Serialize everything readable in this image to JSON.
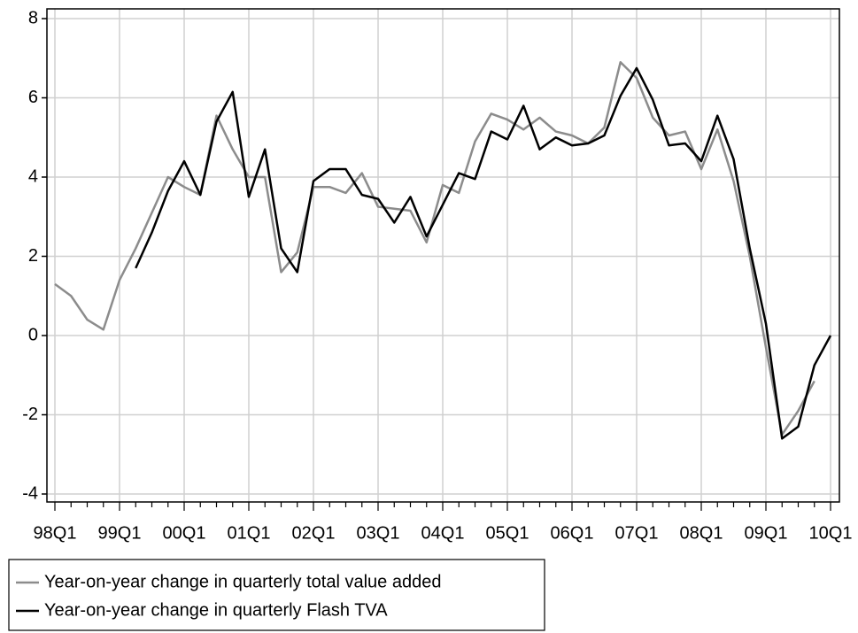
{
  "chart_data": {
    "type": "line",
    "categories": [
      "98Q1",
      null,
      null,
      null,
      "99Q1",
      null,
      null,
      null,
      "00Q1",
      null,
      null,
      null,
      "01Q1",
      null,
      null,
      null,
      "02Q1",
      null,
      null,
      null,
      "03Q1",
      null,
      null,
      null,
      "04Q1",
      null,
      null,
      null,
      "05Q1",
      null,
      null,
      null,
      "06Q1",
      null,
      null,
      null,
      "07Q1",
      null,
      null,
      null,
      "08Q1",
      null,
      null,
      null,
      "09Q1",
      null,
      null,
      null,
      "10Q1"
    ],
    "series": [
      {
        "name": "Year-on-year change in quarterly total value added",
        "color": "#8c8c8c",
        "values": [
          1.3,
          1.0,
          0.4,
          0.15,
          1.4,
          2.2,
          3.1,
          4.0,
          3.75,
          3.55,
          5.55,
          4.7,
          4.0,
          4.0,
          1.6,
          2.1,
          3.75,
          3.75,
          3.6,
          4.1,
          3.25,
          3.2,
          3.15,
          2.35,
          3.8,
          3.6,
          4.9,
          5.6,
          5.45,
          5.2,
          5.5,
          5.15,
          5.05,
          4.85,
          5.25,
          6.9,
          6.5,
          5.5,
          5.05,
          5.15,
          4.2,
          5.2,
          3.9,
          2.0,
          -0.3,
          -2.5,
          -1.9,
          -1.15,
          null
        ]
      },
      {
        "name": "Year-on-year change in quarterly Flash TVA",
        "color": "#000000",
        "values": [
          null,
          null,
          null,
          null,
          null,
          1.7,
          2.6,
          3.65,
          4.4,
          3.55,
          5.4,
          6.15,
          3.5,
          4.7,
          2.2,
          1.6,
          3.9,
          4.2,
          4.2,
          3.55,
          3.45,
          2.85,
          3.5,
          2.5,
          3.3,
          4.1,
          3.95,
          5.15,
          4.95,
          5.8,
          4.7,
          5.0,
          4.8,
          4.85,
          5.05,
          6.05,
          6.75,
          5.95,
          4.8,
          4.85,
          4.4,
          5.55,
          4.45,
          2.2,
          0.3,
          -2.6,
          -2.3,
          -0.75,
          0.0
        ]
      }
    ],
    "ylim": [
      -4,
      8
    ],
    "yticks": [
      -4,
      -2,
      0,
      2,
      4,
      6,
      8
    ],
    "grid": true,
    "legend": "bottom-left"
  }
}
